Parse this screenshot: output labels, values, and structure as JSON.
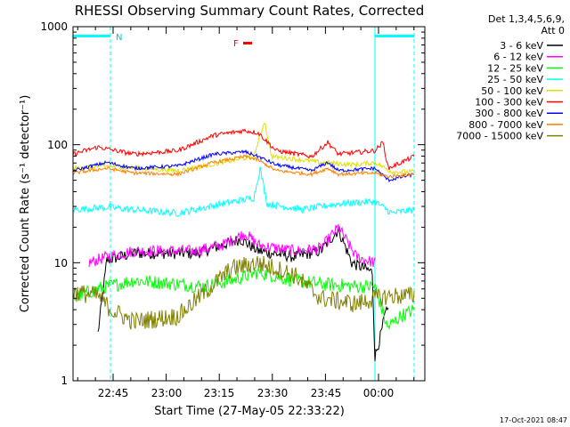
{
  "chart_data": {
    "type": "line",
    "title": "RHESSI Observing Summary Count Rates, Corrected",
    "xlabel": "Start Time (27-May-05 22:33:22)",
    "ylabel": "Corrected Count Rate (s⁻¹ detector⁻¹)",
    "yscale": "log",
    "ylim": [
      1,
      1000
    ],
    "xlim": [
      "22:33:22",
      "00:10:00"
    ],
    "y_ticks": [
      "1",
      "10",
      "100",
      "1000"
    ],
    "x_ticks": [
      "22:45",
      "23:00",
      "23:15",
      "23:30",
      "23:45",
      "00:00"
    ],
    "detector_info": [
      "Det 1,3,4,5,6,9,",
      "Att 0"
    ],
    "timestamp": "17-Oct-2021 08:47",
    "annotations": {
      "night_marker": "N",
      "flare_marker": "F"
    },
    "legend_position": "top-right",
    "series": [
      {
        "name": "3 - 6 keV",
        "color": "#000000"
      },
      {
        "name": "6 - 12 keV",
        "color": "#ff00ff"
      },
      {
        "name": "12 - 25 keV",
        "color": "#00ff00"
      },
      {
        "name": "25 - 50 keV",
        "color": "#00ffff"
      },
      {
        "name": "50 - 100 keV",
        "color": "#e0e000"
      },
      {
        "name": "100 - 300 keV",
        "color": "#ff0000"
      },
      {
        "name": "300 - 800 keV",
        "color": "#0000ff"
      },
      {
        "name": "800 - 7000 keV",
        "color": "#ff8000"
      },
      {
        "name": "7000 - 15000 keV",
        "color": "#808000"
      }
    ]
  }
}
